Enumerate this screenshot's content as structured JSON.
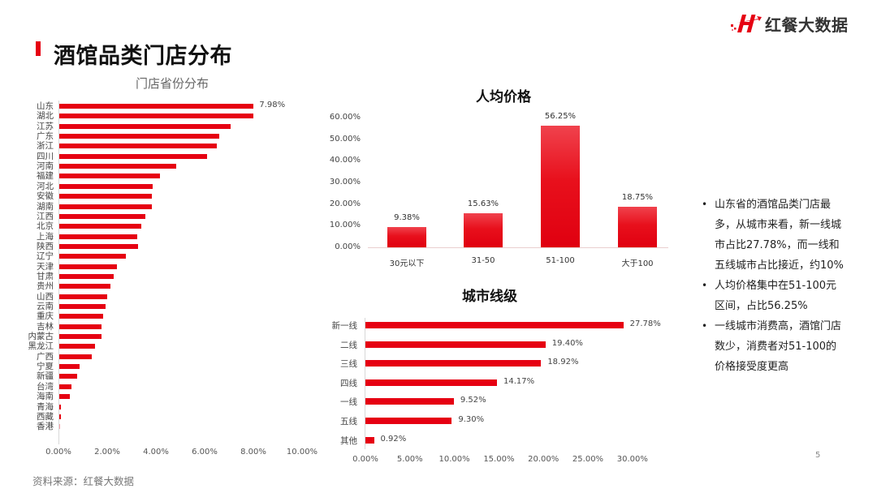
{
  "header": {
    "title": "酒馆品类门店分布",
    "logo_text": "红餐大数据",
    "accent_color": "#e60012"
  },
  "footer": {
    "source": "资料来源：红餐大数据",
    "page_number": "5"
  },
  "notes": [
    "山东省的酒馆品类门店最多，从城市来看，新一线城市占比27.78%，而一线和五线城市占比接近，约10%",
    "人均价格集中在51-100元区间，占比56.25%",
    "一线城市消费高，酒馆门店数少，消费者对51-100的价格接受度更高"
  ],
  "chart_data": [
    {
      "type": "bar",
      "orientation": "horizontal",
      "title": "门店省份分布",
      "categories": [
        "山东",
        "湖北",
        "江苏",
        "广东",
        "浙江",
        "四川",
        "河南",
        "福建",
        "河北",
        "安徽",
        "湖南",
        "江西",
        "北京",
        "上海",
        "陕西",
        "辽宁",
        "天津",
        "甘肃",
        "贵州",
        "山西",
        "云南",
        "重庆",
        "吉林",
        "内蒙古",
        "黑龙江",
        "广西",
        "宁夏",
        "新疆",
        "台湾",
        "海南",
        "青海",
        "西藏",
        "香港"
      ],
      "values": [
        7.98,
        7.95,
        7.03,
        6.57,
        6.47,
        6.07,
        4.8,
        4.13,
        3.83,
        3.8,
        3.8,
        3.53,
        3.37,
        3.2,
        3.23,
        2.73,
        2.37,
        2.23,
        2.1,
        1.97,
        1.9,
        1.8,
        1.73,
        1.73,
        1.47,
        1.33,
        0.83,
        0.73,
        0.5,
        0.43,
        0.07,
        0.05,
        0.02
      ],
      "data_labels": {
        "山东": "7.98%"
      },
      "xlabel": "",
      "ylabel": "",
      "xlim": [
        0,
        10
      ],
      "xticks": [
        "0.00%",
        "2.00%",
        "4.00%",
        "6.00%",
        "8.00%",
        "10.00%"
      ],
      "grid": false,
      "color": "#e60012"
    },
    {
      "type": "bar",
      "orientation": "vertical",
      "title": "人均价格",
      "categories": [
        "30元以下",
        "31-50",
        "51-100",
        "大于100"
      ],
      "values": [
        9.38,
        15.63,
        56.25,
        18.75
      ],
      "data_labels": [
        "9.38%",
        "15.63%",
        "56.25%",
        "18.75%"
      ],
      "ylim": [
        0,
        60
      ],
      "yticks": [
        "0.00%",
        "10.00%",
        "20.00%",
        "30.00%",
        "40.00%",
        "50.00%",
        "60.00%"
      ],
      "grid": false,
      "color": "#e60012"
    },
    {
      "type": "bar",
      "orientation": "horizontal",
      "title": "城市线级",
      "categories": [
        "新一线",
        "二线",
        "三线",
        "四线",
        "一线",
        "五线",
        "其他"
      ],
      "values": [
        27.78,
        19.4,
        18.92,
        14.17,
        9.52,
        9.3,
        0.92
      ],
      "data_labels": [
        "27.78%",
        "19.40%",
        "18.92%",
        "14.17%",
        "9.52%",
        "9.30%",
        "0.92%"
      ],
      "xlim": [
        0,
        30
      ],
      "xticks": [
        "0.00%",
        "5.00%",
        "10.00%",
        "15.00%",
        "20.00%",
        "25.00%",
        "30.00%"
      ],
      "grid": false,
      "color": "#e60012"
    }
  ]
}
